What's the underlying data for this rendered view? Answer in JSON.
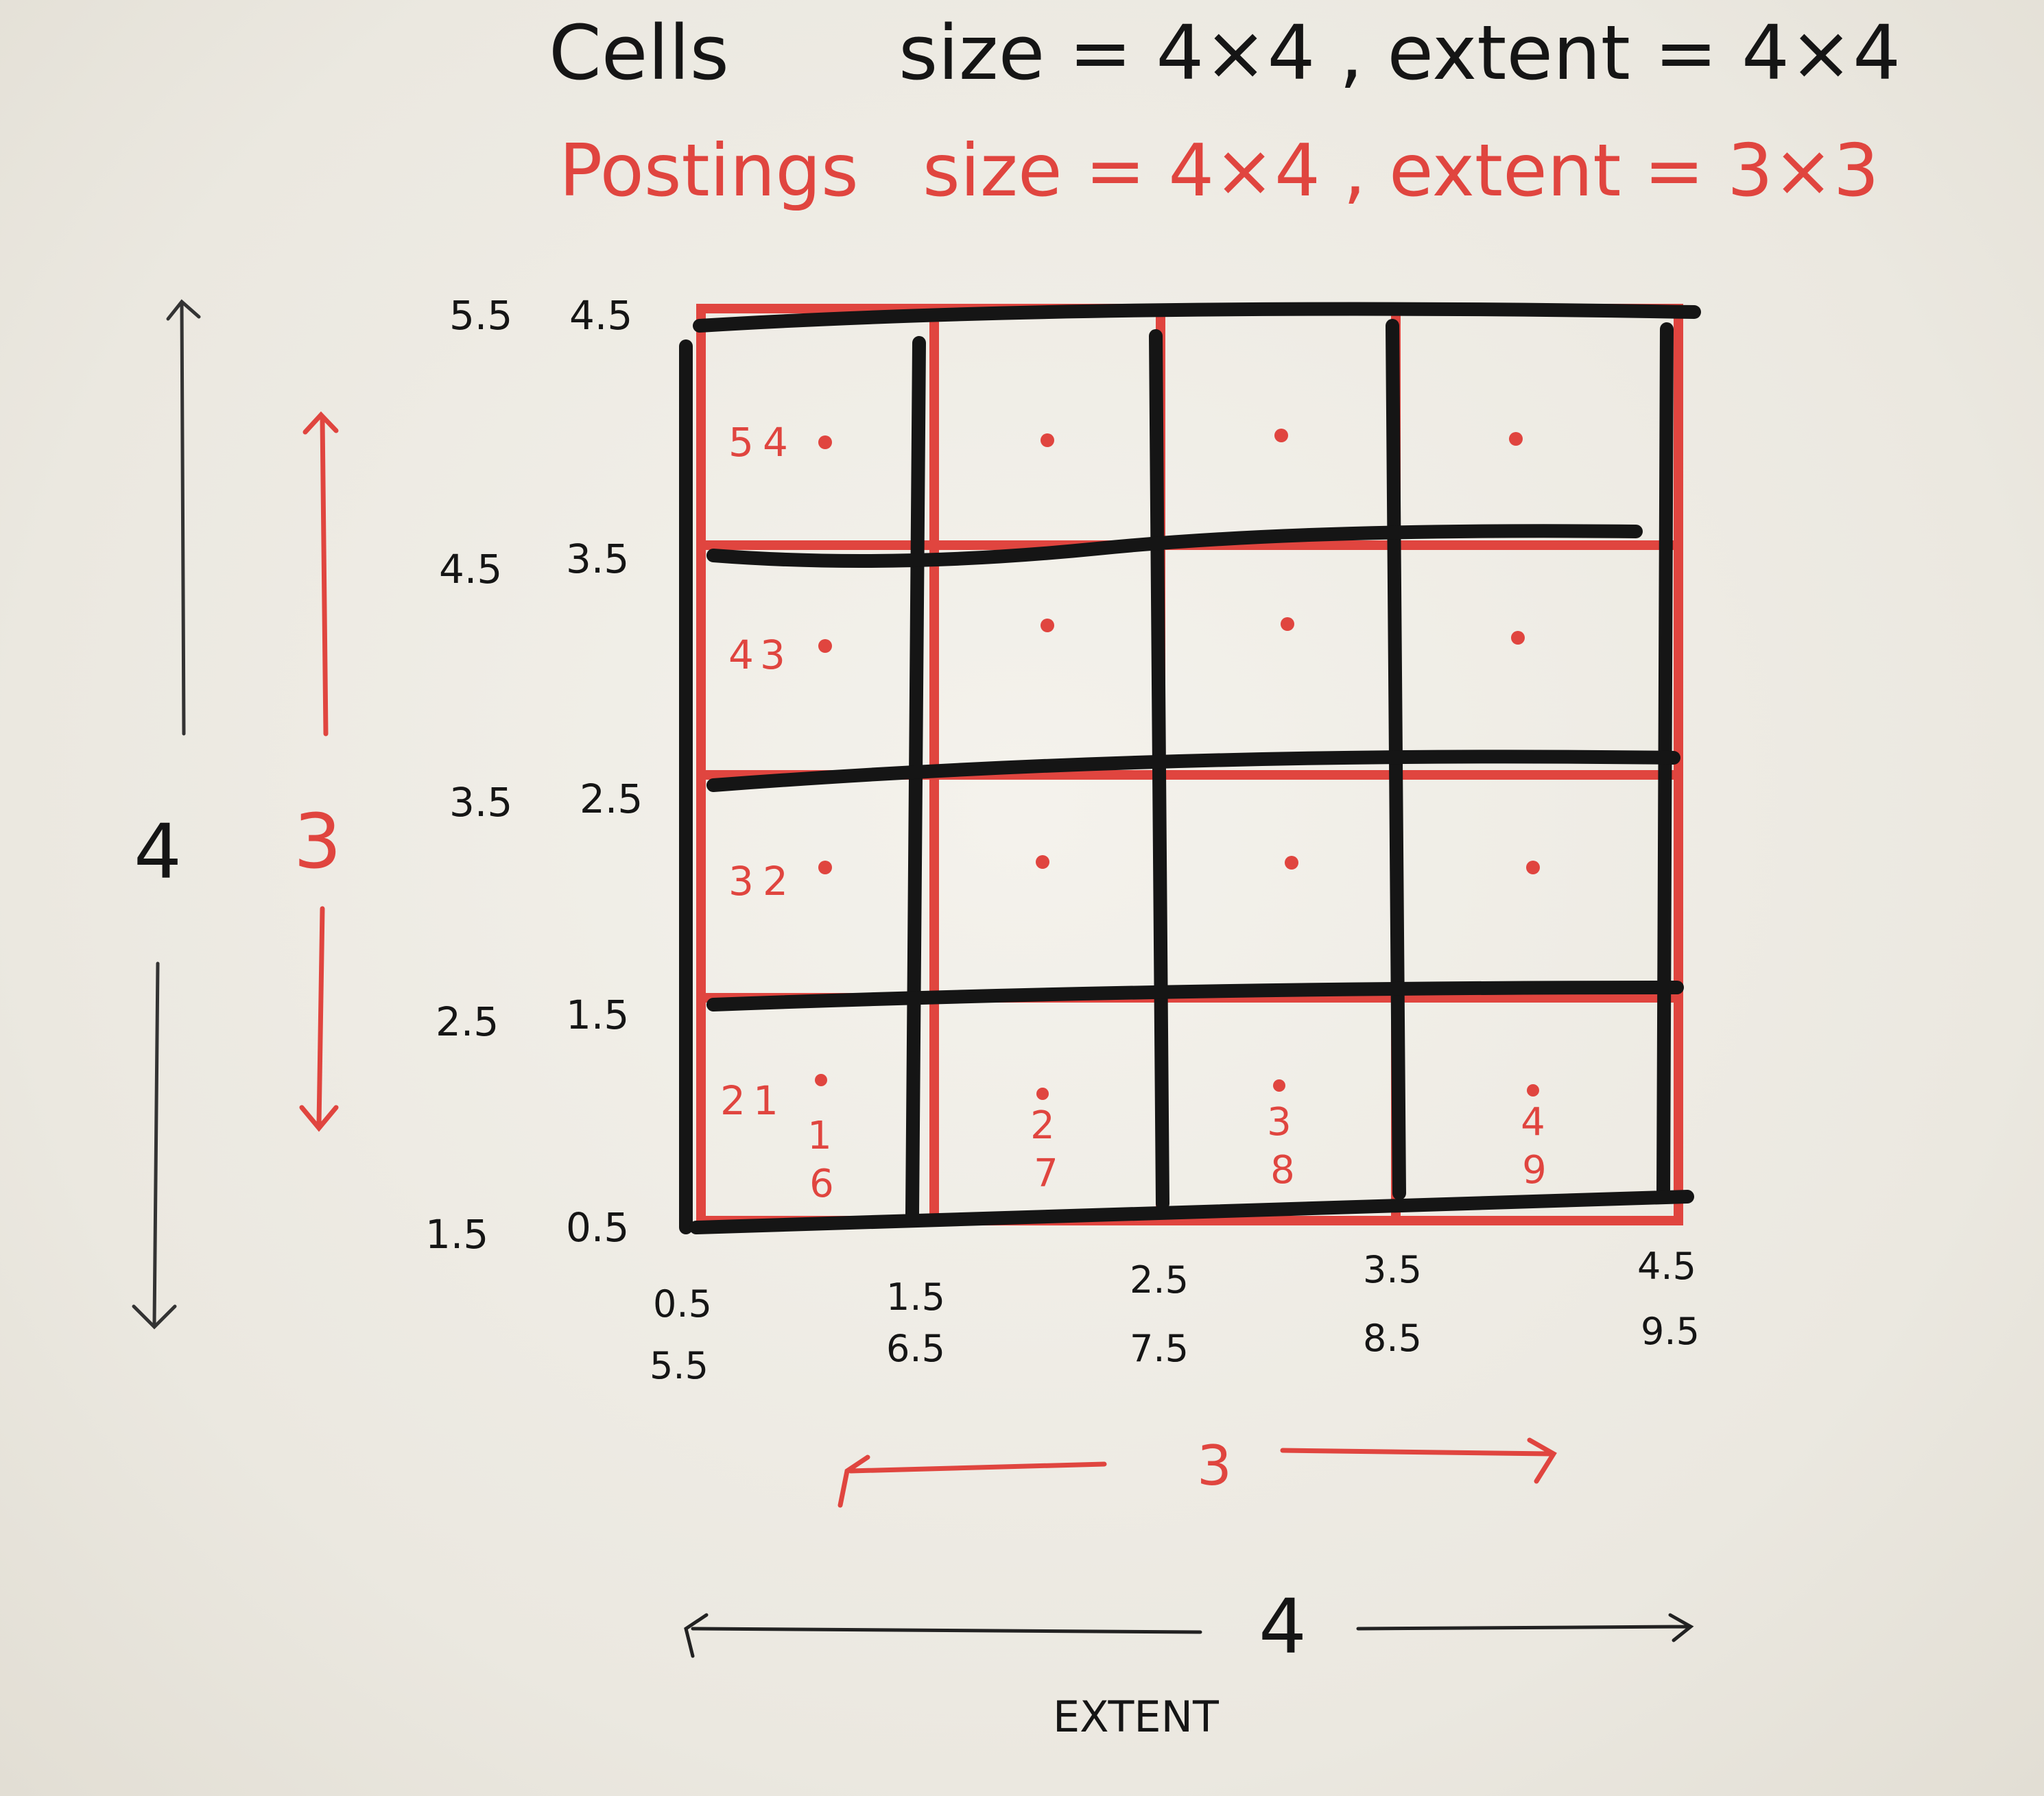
{
  "heading": {
    "cells_label": "Cells",
    "cells_spec": "size = 4×4 , extent = 4×4",
    "postings_label": "Postings",
    "postings_spec": "size = 4×4 , extent = 3×3"
  },
  "y_axis": {
    "cells_labels": [
      "5.5",
      "4.5",
      "3.5",
      "2.5",
      "1.5"
    ],
    "postings_labels": [
      "4.5",
      "3.5",
      "2.5",
      "1.5",
      "0.5"
    ]
  },
  "x_axis": {
    "top_labels": [
      "0.5",
      "1.5",
      "2.5",
      "3.5",
      "4.5"
    ],
    "bottom_labels": [
      "5.5",
      "6.5",
      "7.5",
      "8.5",
      "9.5"
    ]
  },
  "cell_ids": [
    "5",
    "4",
    "3",
    "2"
  ],
  "posting_ids": [
    {
      "row": 0,
      "col": 0,
      "text": "4"
    },
    {
      "row": 1,
      "col": 0,
      "text": "3"
    },
    {
      "row": 2,
      "col": 0,
      "text": "2"
    },
    {
      "row": 3,
      "col": 0,
      "text": "1"
    }
  ],
  "bottom_row_ids": [
    {
      "col": 0,
      "top": "",
      "mid": "1",
      "low": "6"
    },
    {
      "col": 1,
      "top": "",
      "mid": "2",
      "low": "7"
    },
    {
      "col": 2,
      "top": "",
      "mid": "3",
      "low": "8"
    },
    {
      "col": 3,
      "top": "",
      "mid": "4",
      "low": "9"
    }
  ],
  "dimensions": {
    "cells_vertical": "4",
    "postings_vertical": "3",
    "postings_horizontal": "3",
    "cells_horizontal": "4",
    "extent_label": "EXTENT"
  },
  "colors": {
    "black_ink": "#151515",
    "red_ink": "#e0453f",
    "board": "#efece5"
  }
}
